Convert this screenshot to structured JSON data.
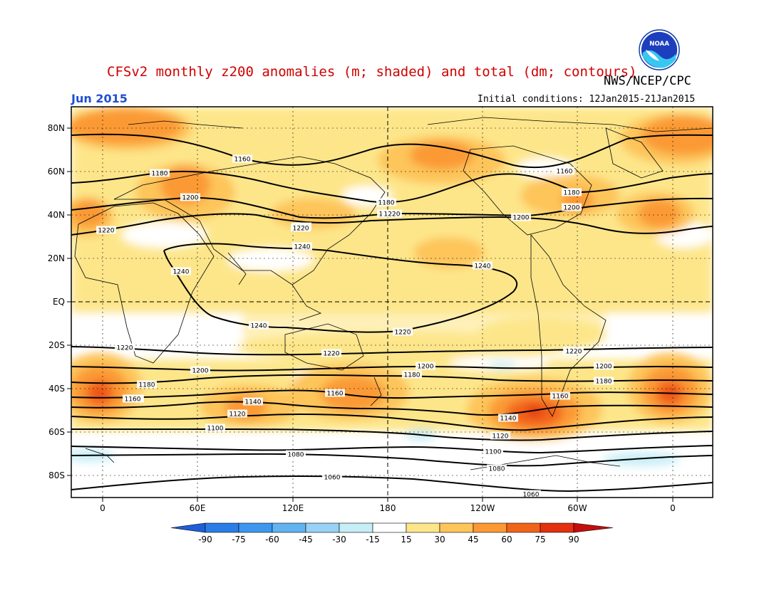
{
  "header": {
    "title": "CFSv2 monthly z200 anomalies (m; shaded) and total (dm; contours)",
    "credit": "NWS/NCEP/CPC",
    "month": "Jun 2015",
    "initial_conditions": "Initial conditions: 12Jan2015-21Jan2015",
    "logo_text": "NOAA"
  },
  "map": {
    "lat_labels": [
      "80N",
      "60N",
      "40N",
      "20N",
      "EQ",
      "20S",
      "40S",
      "60S",
      "80S"
    ],
    "lon_labels": [
      "0",
      "60E",
      "120E",
      "180",
      "120W",
      "60W",
      "0"
    ],
    "contour_labels": [
      "1160",
      "1180",
      "1200",
      "1220",
      "1240",
      "1240",
      "1240",
      "1240",
      "1240",
      "1220",
      "1220",
      "1200",
      "1180",
      "1160",
      "1180",
      "1180",
      "1200",
      "1200",
      "1220",
      "1220",
      "1220",
      "1200",
      "1180",
      "1160",
      "1140",
      "1120",
      "1100",
      "1080",
      "1060",
      "1060",
      "1220",
      "1200",
      "1180",
      "1160",
      "1140",
      "1120",
      "1100",
      "1080",
      "1200",
      "1180",
      "1220",
      "1160",
      "1160"
    ]
  },
  "colorbar": {
    "labels": [
      "-90",
      "-75",
      "-60",
      "-45",
      "-30",
      "-15",
      "15",
      "30",
      "45",
      "60",
      "75",
      "90"
    ],
    "colors": [
      "#1e5fd8",
      "#2a7de6",
      "#3d97ee",
      "#62b3f2",
      "#97d1f5",
      "#c6eef7",
      "#ffffff",
      "#fde68a",
      "#fdc55a",
      "#fb9a34",
      "#f2631a",
      "#e33010",
      "#c40d0d"
    ]
  },
  "colors": {
    "title": "#d00000",
    "month": "#1f4fd6",
    "contour": "#000000"
  }
}
